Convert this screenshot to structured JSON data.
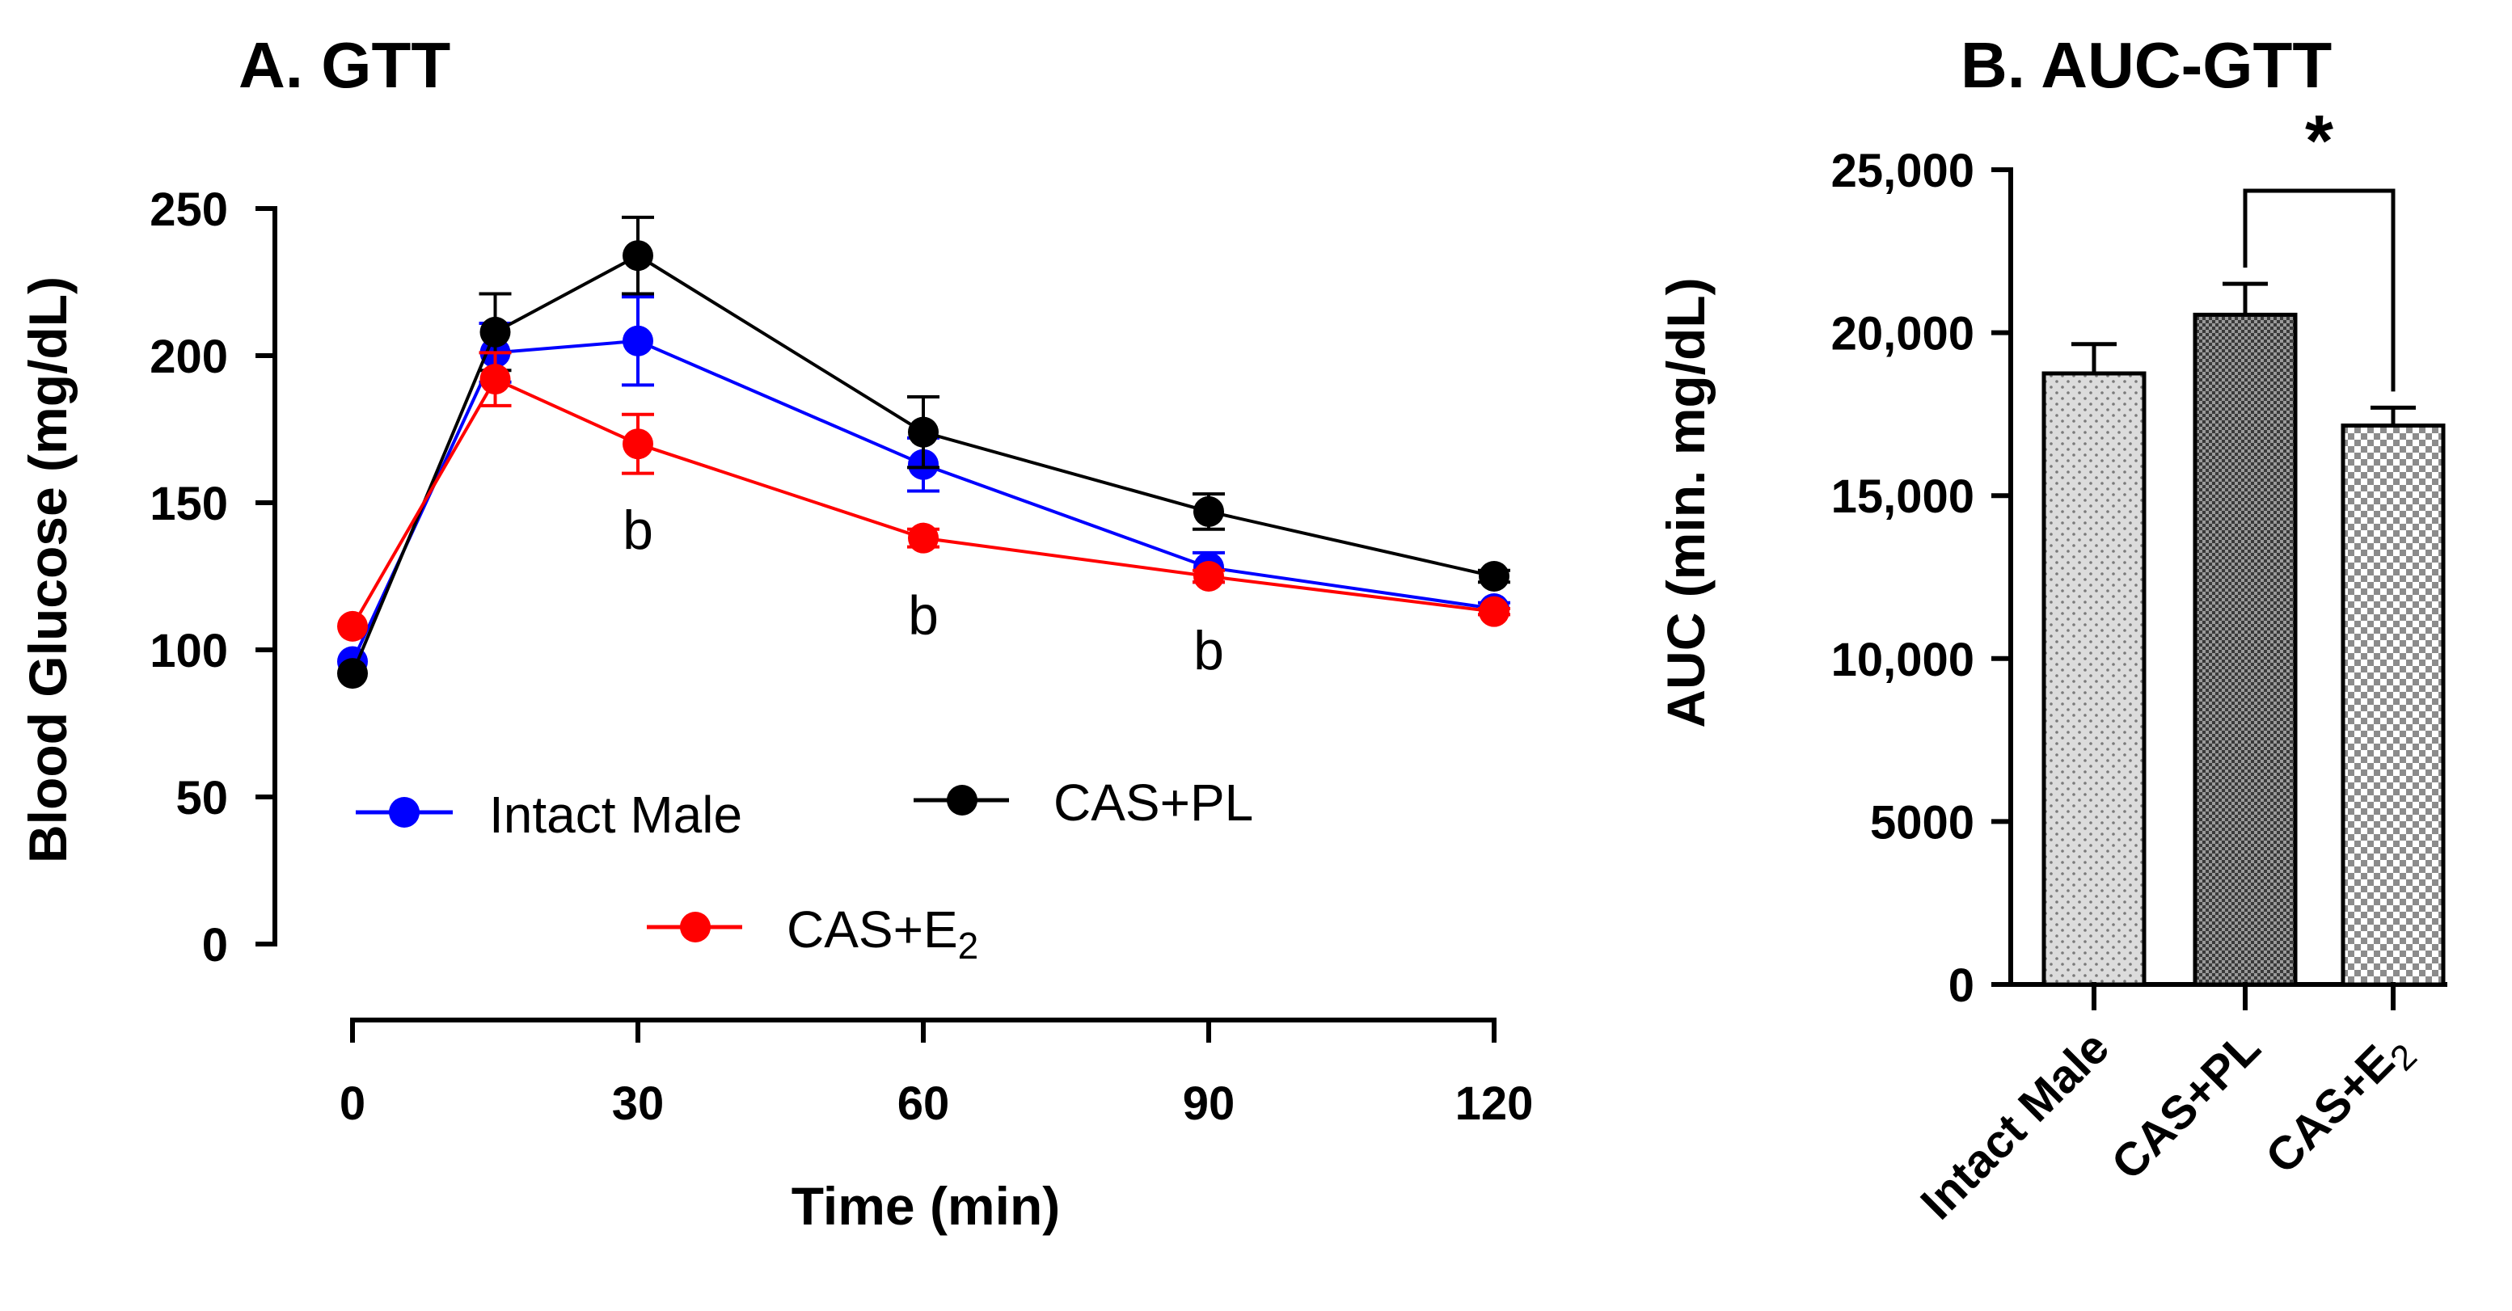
{
  "chart_data": [
    {
      "type": "line",
      "title": "A. GTT",
      "xlabel": "Time (min)",
      "ylabel": "Blood Glucose (mg/dL)",
      "xlim": [
        0,
        120
      ],
      "ylim": [
        0,
        250
      ],
      "xticks": [
        0,
        30,
        60,
        90,
        120
      ],
      "yticks": [
        0,
        50,
        100,
        150,
        200,
        250
      ],
      "x": [
        0,
        15,
        30,
        60,
        90,
        120
      ],
      "series": [
        {
          "name": "Intact Male",
          "color": "#0000ff",
          "values": [
            96,
            201,
            205,
            163,
            128,
            114
          ],
          "err": [
            0,
            10,
            15,
            9,
            5,
            2
          ]
        },
        {
          "name": "CAS+PL",
          "color": "#000000",
          "values": [
            92,
            208,
            234,
            174,
            147,
            125
          ],
          "err": [
            0,
            13,
            13,
            12,
            6,
            2
          ]
        },
        {
          "name": "CAS+E",
          "name_sub": "2",
          "color": "#ff0000",
          "values": [
            108,
            192,
            170,
            138,
            125,
            113
          ],
          "err": [
            0,
            9,
            10,
            3,
            2,
            1
          ]
        }
      ],
      "annotations": [
        {
          "text": "b",
          "x": 30,
          "y": 141
        },
        {
          "text": "b",
          "x": 60,
          "y": 112
        },
        {
          "text": "b",
          "x": 90,
          "y": 100
        }
      ],
      "legend": "lower-left"
    },
    {
      "type": "bar",
      "title": "B. AUC-GTT",
      "ylabel": "AUC (min. mg/dL)",
      "ylim": [
        0,
        25000
      ],
      "yticks": [
        0,
        5000,
        10000,
        15000,
        20000,
        25000
      ],
      "ytick_labels": [
        "0",
        "5000",
        "10,000",
        "15,000",
        "20,000",
        "25,000"
      ],
      "categories": [
        "Intact Male",
        "CAS+PL",
        "CAS+E"
      ],
      "category_subs": [
        "",
        "",
        "2"
      ],
      "values": [
        18750,
        20550,
        17150
      ],
      "err": [
        900,
        950,
        550
      ],
      "significance": {
        "between": [
          1,
          2
        ],
        "label": "*"
      }
    }
  ]
}
